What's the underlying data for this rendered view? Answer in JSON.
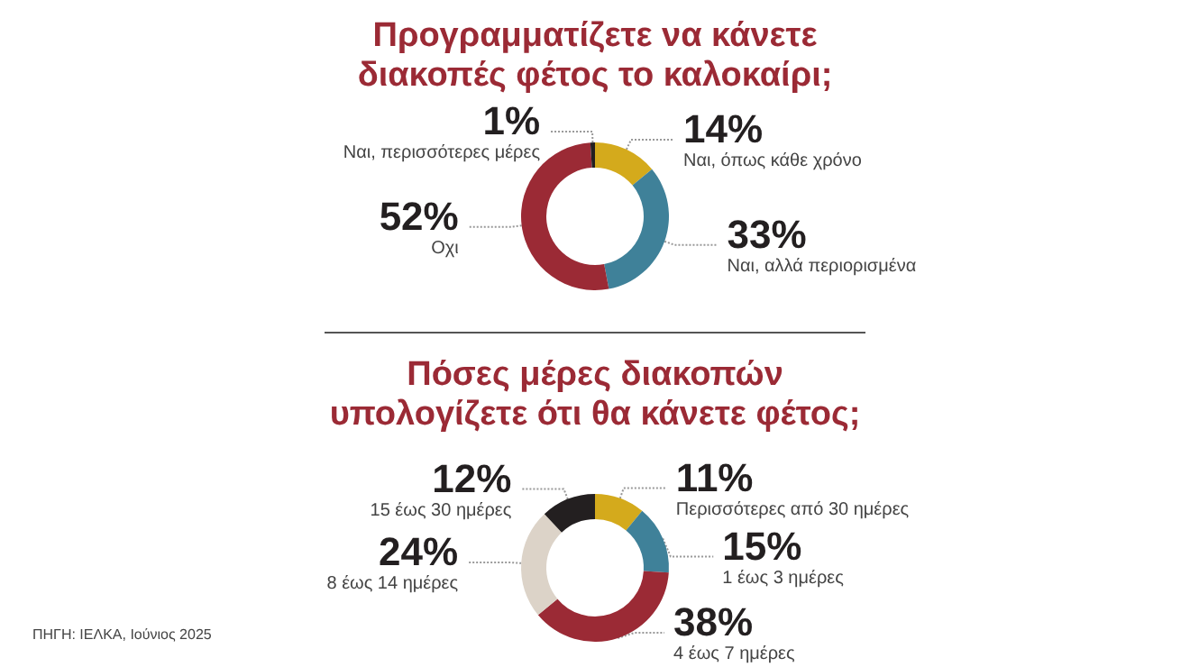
{
  "chart_data": [
    {
      "type": "donut",
      "title": "Προγραμματίζετε να κάνετε\nδιακοπές φέτος το καλοκαίρι;",
      "categories": [
        "Ναι, όπως κάθε χρόνο",
        "Ναι, αλλά περιορισμένα",
        "Οχι",
        "Ναι, περισσότερες μέρες"
      ],
      "values": [
        14,
        33,
        52,
        1
      ],
      "value_labels": [
        "14%",
        "33%",
        "52%",
        "1%"
      ],
      "colors": [
        "#d4aa1c",
        "#3f8199",
        "#9b2a35",
        "#231f20"
      ],
      "legend": false
    },
    {
      "type": "donut",
      "title": "Πόσες μέρες διακοπών\nυπολογίζετε ότι θα κάνετε φέτος;",
      "categories": [
        "Περισσότερες από 30 ημέρες",
        "1 έως 3 ημέρες",
        "4 έως 7 ημέρες",
        "8 έως 14 ημέρες",
        "15 έως 30 ημέρες"
      ],
      "values": [
        11,
        15,
        38,
        24,
        12
      ],
      "value_labels": [
        "11%",
        "15%",
        "38%",
        "24%",
        "12%"
      ],
      "colors": [
        "#d4aa1c",
        "#3f8199",
        "#9b2a35",
        "#dcd3c8",
        "#231f20"
      ],
      "legend": false,
      "annotations": [
        "ΠΗΓΗ: ΙΕΛΚΑ, Ιούνιος 2025"
      ]
    }
  ]
}
